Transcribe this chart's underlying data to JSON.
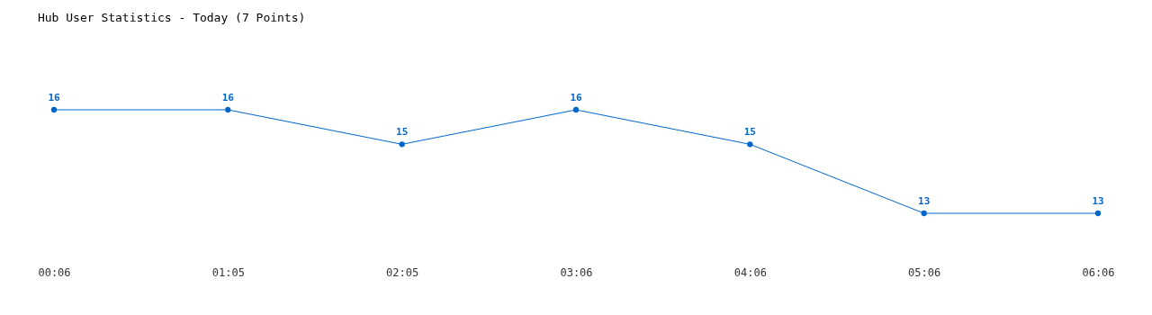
{
  "chart_data": {
    "type": "line",
    "title": "Hub User Statistics - Today (7 Points)",
    "categories": [
      "00:06",
      "01:05",
      "02:05",
      "03:06",
      "04:06",
      "05:06",
      "06:06"
    ],
    "series": [
      {
        "color": "#0066cc",
        "values": [
          16,
          16,
          15,
          16,
          15,
          13,
          13
        ]
      }
    ],
    "data_labels": true,
    "marker": "circle",
    "grid": false,
    "tick_labels": "x"
  }
}
